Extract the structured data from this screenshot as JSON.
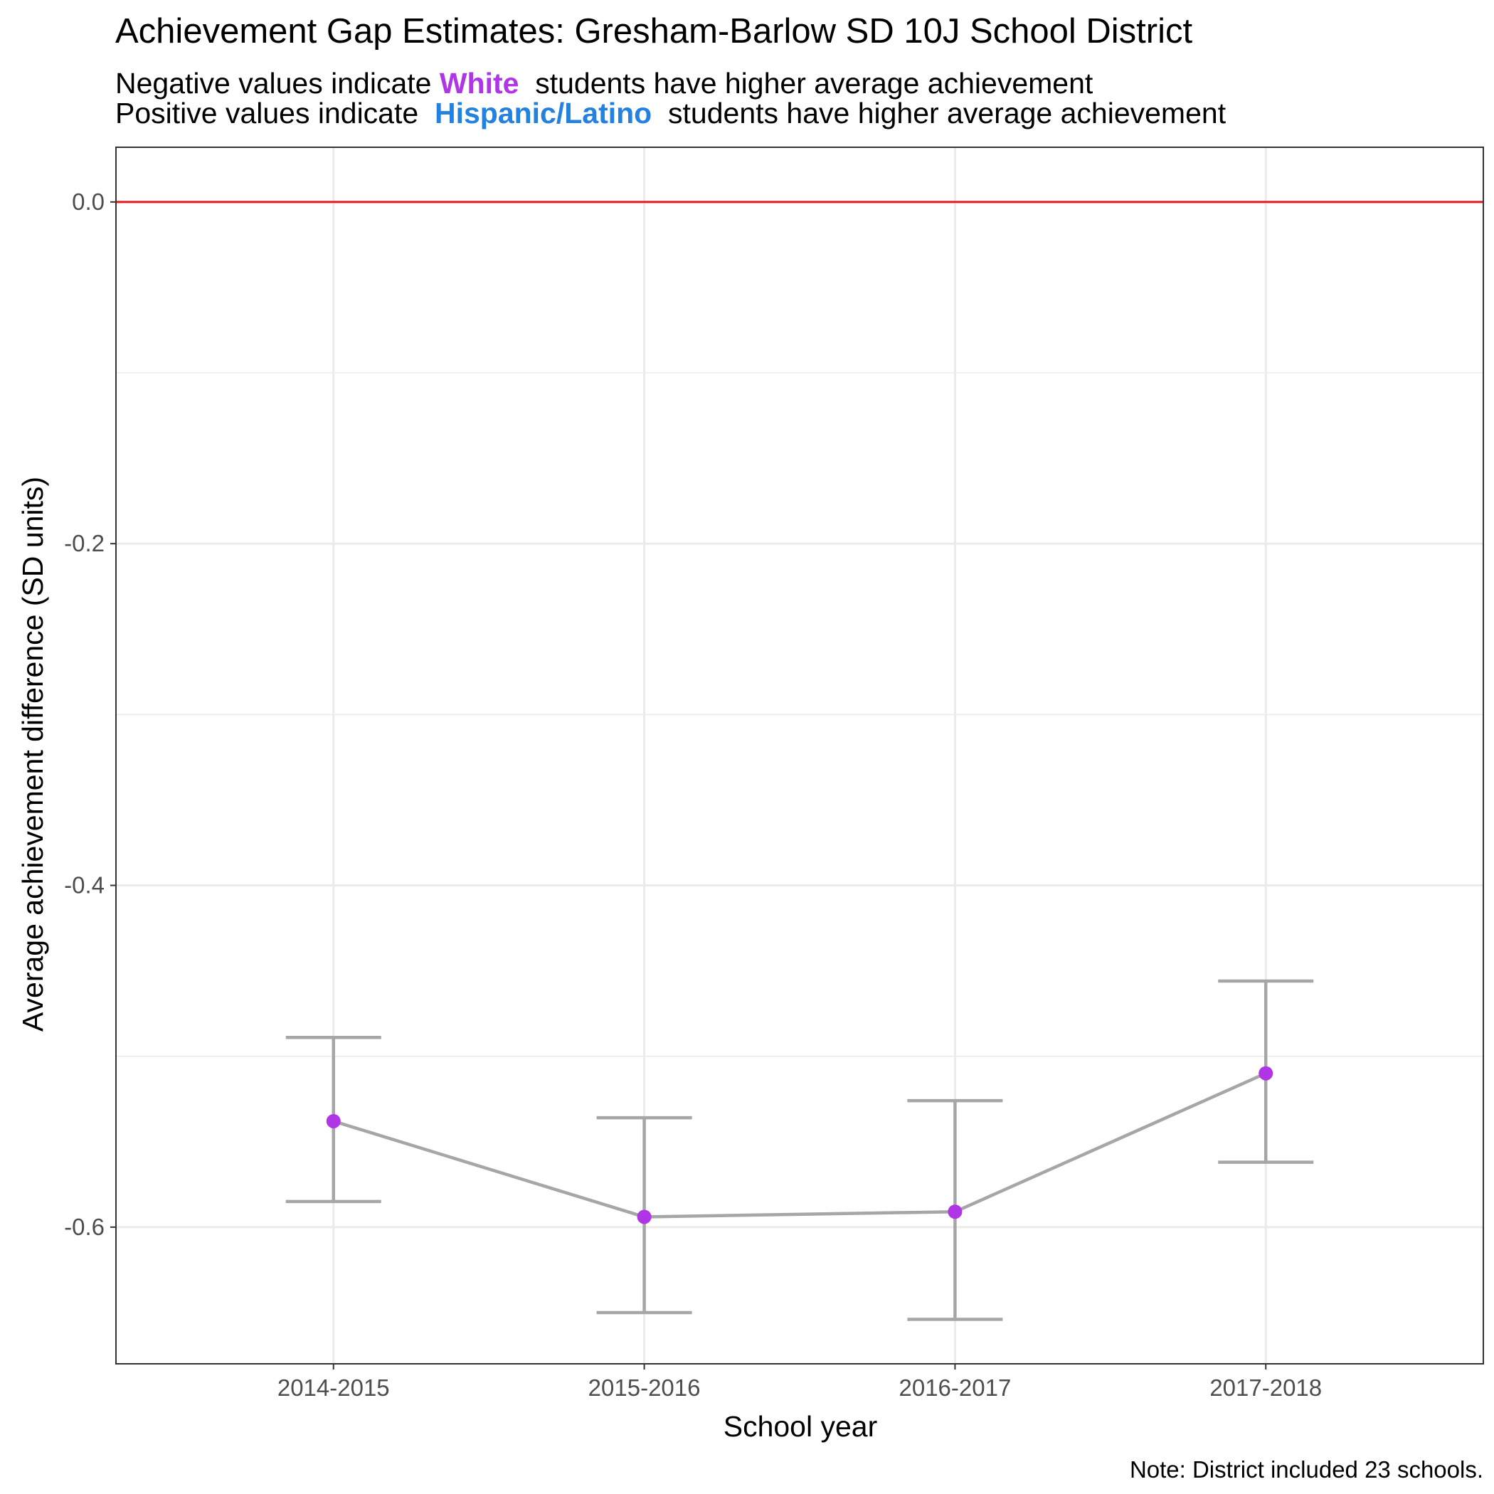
{
  "chart_data": {
    "type": "line",
    "title": "Achievement Gap Estimates: Gresham-Barlow SD 10J School District",
    "subtitle": {
      "line1": {
        "prefix": "Negative values indicate ",
        "group": "White",
        "suffix": "  students have higher average achievement"
      },
      "line2": {
        "prefix": "Positive values indicate  ",
        "group": "Hispanic/Latino",
        "suffix": "  students have higher average achievement"
      }
    },
    "xlabel": "School year",
    "ylabel": "Average achievement difference (SD units)",
    "caption": "Note: District included 23 schools.",
    "categories": [
      "2014-2015",
      "2015-2016",
      "2016-2017",
      "2017-2018"
    ],
    "series": [
      {
        "values": [
          -0.538,
          -0.594,
          -0.591,
          -0.51
        ],
        "lower": [
          -0.585,
          -0.65,
          -0.654,
          -0.562
        ],
        "upper": [
          -0.489,
          -0.536,
          -0.526,
          -0.456
        ]
      }
    ],
    "ylim": [
      -0.68,
      0.032
    ],
    "yticks": [
      0.0,
      -0.2,
      -0.4,
      -0.6
    ],
    "yticklabels": [
      "0.0",
      "-0.2",
      "-0.4",
      "-0.6"
    ],
    "reference_line": 0.0,
    "grid": true,
    "colors": {
      "white_group": "#B035E6",
      "hispanic_group": "#2381E0",
      "point": "#B035E6",
      "line": "#A6A6A6",
      "reference": "#E41A1C",
      "grid": "#EBEBEB",
      "panel_border": "#333333"
    }
  }
}
